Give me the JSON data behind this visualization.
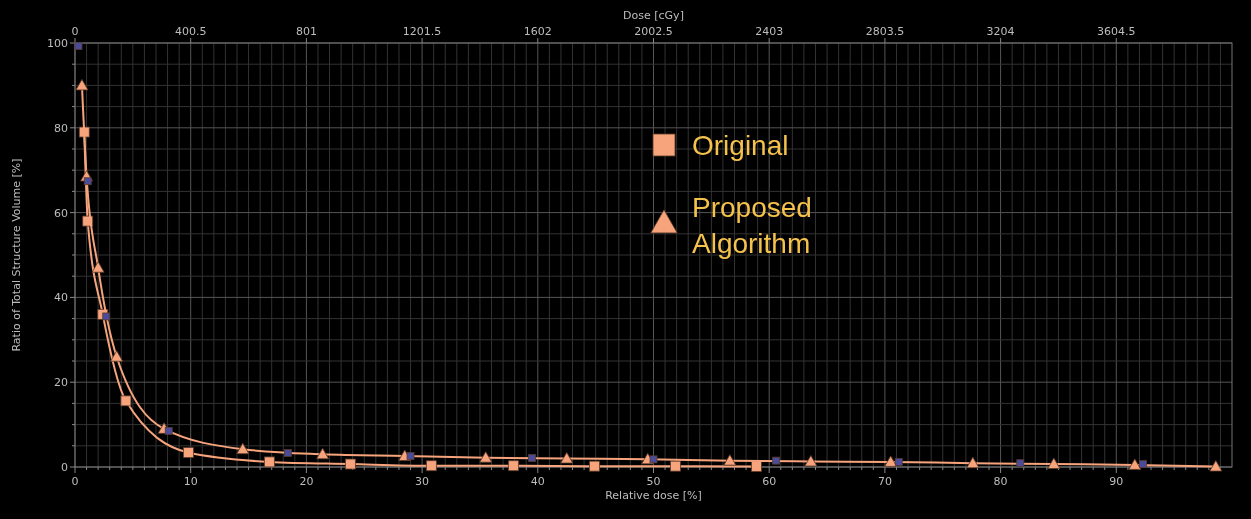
{
  "chart_data": {
    "type": "line",
    "xlabel": "Relative dose [%]",
    "ylabel": "Ratio of Total Structure Volume [%]",
    "x2label": "Dose [cGy]",
    "xlim": [
      0,
      100
    ],
    "xticks": [
      0,
      {
        "value": 1,
        "label": null
      },
      {
        "value": 2,
        "label": null
      },
      {
        "value": 3,
        "label": null
      },
      {
        "value": 4,
        "label": null
      },
      {
        "value": 5,
        "label": null
      },
      {
        "value": 6,
        "label": null
      },
      {
        "value": 7,
        "label": null
      },
      {
        "value": 8,
        "label": null
      },
      {
        "value": 9,
        "label": null
      },
      10,
      {
        "value": 11,
        "label": null
      },
      {
        "value": 12,
        "label": null
      },
      {
        "value": 13,
        "label": null
      },
      {
        "value": 14,
        "label": null
      },
      {
        "value": 15,
        "label": null
      },
      {
        "value": 16,
        "label": null
      },
      {
        "value": 17,
        "label": null
      },
      {
        "value": 18,
        "label": null
      },
      {
        "value": 19,
        "label": null
      },
      20,
      {
        "value": 21,
        "label": null
      },
      {
        "value": 22,
        "label": null
      },
      {
        "value": 23,
        "label": null
      },
      {
        "value": 24,
        "label": null
      },
      {
        "value": 25,
        "label": null
      },
      {
        "value": 26,
        "label": null
      },
      {
        "value": 27,
        "label": null
      },
      {
        "value": 28,
        "label": null
      },
      {
        "value": 29,
        "label": null
      },
      30,
      {
        "value": 31,
        "label": null
      },
      {
        "value": 32,
        "label": null
      },
      {
        "value": 33,
        "label": null
      },
      {
        "value": 34,
        "label": null
      },
      {
        "value": 35,
        "label": null
      },
      {
        "value": 36,
        "label": null
      },
      {
        "value": 37,
        "label": null
      },
      {
        "value": 38,
        "label": null
      },
      {
        "value": 39,
        "label": null
      },
      40,
      {
        "value": 41,
        "label": null
      },
      {
        "value": 42,
        "label": null
      },
      {
        "value": 43,
        "label": null
      },
      {
        "value": 44,
        "label": null
      },
      {
        "value": 45,
        "label": null
      },
      {
        "value": 46,
        "label": null
      },
      {
        "value": 47,
        "label": null
      },
      {
        "value": 48,
        "label": null
      },
      {
        "value": 49,
        "label": null
      },
      50,
      {
        "value": 51,
        "label": null
      },
      {
        "value": 52,
        "label": null
      },
      {
        "value": 53,
        "label": null
      },
      {
        "value": 54,
        "label": null
      },
      {
        "value": 55,
        "label": null
      },
      {
        "value": 56,
        "label": null
      },
      {
        "value": 57,
        "label": null
      },
      {
        "value": 58,
        "label": null
      },
      {
        "value": 59,
        "label": null
      },
      60,
      {
        "value": 61,
        "label": null
      },
      {
        "value": 62,
        "label": null
      },
      {
        "value": 63,
        "label": null
      },
      {
        "value": 64,
        "label": null
      },
      {
        "value": 65,
        "label": null
      },
      {
        "value": 66,
        "label": null
      },
      {
        "value": 67,
        "label": null
      },
      {
        "value": 68,
        "label": null
      },
      {
        "value": 69,
        "label": null
      },
      70,
      {
        "value": 71,
        "label": null
      },
      {
        "value": 72,
        "label": null
      },
      {
        "value": 73,
        "label": null
      },
      {
        "value": 74,
        "label": null
      },
      {
        "value": 75,
        "label": null
      },
      {
        "value": 76,
        "label": null
      },
      {
        "value": 77,
        "label": null
      },
      {
        "value": 78,
        "label": null
      },
      {
        "value": 79,
        "label": null
      },
      80,
      {
        "value": 81,
        "label": null
      },
      {
        "value": 82,
        "label": null
      },
      {
        "value": 83,
        "label": null
      },
      {
        "value": 84,
        "label": null
      },
      {
        "value": 85,
        "label": null
      },
      {
        "value": 86,
        "label": null
      },
      {
        "value": 87,
        "label": null
      },
      {
        "value": 88,
        "label": null
      },
      {
        "value": 89,
        "label": null
      },
      90,
      {
        "value": 91,
        "label": null
      },
      {
        "value": 92,
        "label": null
      },
      {
        "value": 93,
        "label": null
      },
      {
        "value": 94,
        "label": null
      },
      {
        "value": 95,
        "label": null
      },
      {
        "value": 96,
        "label": null
      },
      {
        "value": 97,
        "label": null
      },
      {
        "value": 98,
        "label": null
      },
      {
        "value": 99,
        "label": null
      }
    ],
    "x2lim": [
      0,
      4005
    ],
    "x2ticks": [
      0,
      400.5,
      801,
      1201.5,
      1602,
      2002.5,
      2403,
      2803.5,
      3204,
      3604.5
    ],
    "ylim": [
      0,
      100
    ],
    "yticks": [
      0,
      {
        "value": 5,
        "label": null
      },
      {
        "value": 10,
        "label": null
      },
      {
        "value": 15,
        "label": null
      },
      20,
      {
        "value": 25,
        "label": null
      },
      {
        "value": 30,
        "label": null
      },
      {
        "value": 35,
        "label": null
      },
      40,
      {
        "value": 45,
        "label": null
      },
      {
        "value": 50,
        "label": null
      },
      {
        "value": 55,
        "label": null
      },
      60,
      {
        "value": 65,
        "label": null
      },
      {
        "value": 70,
        "label": null
      },
      {
        "value": 75,
        "label": null
      },
      80,
      {
        "value": 85,
        "label": null
      },
      {
        "value": 90,
        "label": null
      },
      {
        "value": 95,
        "label": null
      },
      100
    ],
    "grid": true,
    "legend": "top",
    "line_style": "solid",
    "series": [
      {
        "name": "Original",
        "color": "#f7a47c",
        "marker": "square",
        "x": [
          0.8,
          1.1,
          2.4,
          4.4,
          9.8,
          16.8,
          23.8,
          30.8,
          37.9,
          44.9,
          51.9,
          58.9
        ],
        "values": [
          79,
          58,
          36,
          15.6,
          3.4,
          1.2,
          0.7,
          0.3,
          0.3,
          0.2,
          0.2,
          0.1
        ]
      },
      {
        "name": "Proposed Algorithm",
        "color": "#f7a47c",
        "marker": "triangle",
        "x": [
          0.6,
          1,
          2,
          3.6,
          7.7,
          14.5,
          21.4,
          28.5,
          35.5,
          42.5,
          49.5,
          56.6,
          63.6,
          70.5,
          77.6,
          84.6,
          91.6,
          98.6
        ],
        "values": [
          90,
          68.5,
          47,
          26,
          9,
          4.2,
          3,
          2.6,
          2.2,
          2,
          1.8,
          1.5,
          1.3,
          1.2,
          0.9,
          0.7,
          0.5,
          0.1
        ]
      },
      {
        "type": "scatter",
        "color": "#4b4b9b",
        "marker": "square",
        "x": [
          0.3,
          1.1,
          2.7,
          8.1,
          18.4,
          29,
          39.5,
          50,
          60.6,
          71.2,
          81.7,
          92.3
        ],
        "values": [
          99.3,
          67.4,
          35.5,
          8.5,
          3.3,
          2.6,
          2.1,
          1.8,
          1.5,
          1.2,
          0.9,
          0.7
        ]
      }
    ]
  }
}
